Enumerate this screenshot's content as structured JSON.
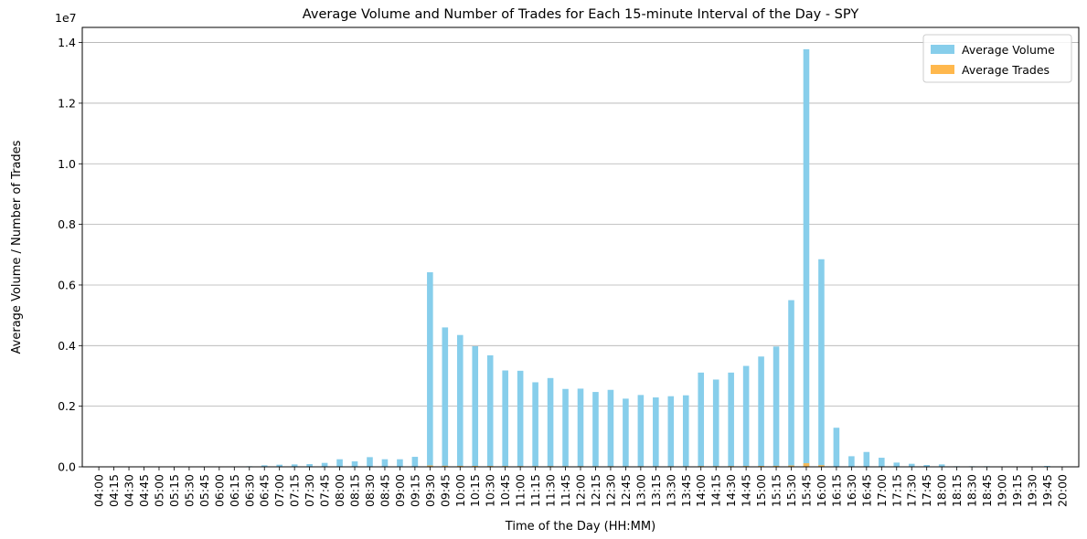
{
  "chart_data": {
    "type": "bar",
    "title": "Average Volume and Number of Trades for Each 15-minute Interval of the Day - SPY",
    "xlabel": "Time of the Day (HH:MM)",
    "ylabel": "Average Volume / Number of Trades",
    "y_offset_text": "1e7",
    "ylim": [
      0,
      14500000
    ],
    "yticks": [
      0,
      2000000,
      4000000,
      6000000,
      8000000,
      10000000,
      12000000,
      14000000
    ],
    "ytick_labels": [
      "0.0",
      "0.2",
      "0.4",
      "0.6",
      "0.8",
      "1.0",
      "1.2",
      "1.4"
    ],
    "grid": "y",
    "legend_position": "top-right",
    "categories": [
      "04:00",
      "04:15",
      "04:30",
      "04:45",
      "05:00",
      "05:15",
      "05:30",
      "05:45",
      "06:00",
      "06:15",
      "06:30",
      "06:45",
      "07:00",
      "07:15",
      "07:30",
      "07:45",
      "08:00",
      "08:15",
      "08:30",
      "08:45",
      "09:00",
      "09:15",
      "09:30",
      "09:45",
      "10:00",
      "10:15",
      "10:30",
      "10:45",
      "11:00",
      "11:15",
      "11:30",
      "11:45",
      "12:00",
      "12:15",
      "12:30",
      "12:45",
      "13:00",
      "13:15",
      "13:30",
      "13:45",
      "14:00",
      "14:15",
      "14:30",
      "14:45",
      "15:00",
      "15:15",
      "15:30",
      "15:45",
      "16:00",
      "16:15",
      "16:30",
      "16:45",
      "17:00",
      "17:15",
      "17:30",
      "17:45",
      "18:00",
      "18:15",
      "18:30",
      "18:45",
      "19:00",
      "19:15",
      "19:30",
      "19:45",
      "20:00"
    ],
    "series": [
      {
        "name": "Average Volume",
        "color": "#87CEEB",
        "values": [
          5000,
          5000,
          5000,
          5000,
          10000,
          10000,
          10000,
          10000,
          10000,
          15000,
          20000,
          50000,
          70000,
          80000,
          90000,
          130000,
          250000,
          180000,
          320000,
          250000,
          250000,
          330000,
          6420000,
          4600000,
          4350000,
          3980000,
          3680000,
          3180000,
          3170000,
          2790000,
          2930000,
          2570000,
          2580000,
          2470000,
          2540000,
          2250000,
          2370000,
          2290000,
          2330000,
          2360000,
          3110000,
          2880000,
          3110000,
          3330000,
          3640000,
          3970000,
          5500000,
          13780000,
          6850000,
          1290000,
          350000,
          490000,
          300000,
          140000,
          100000,
          60000,
          80000,
          20000,
          20000,
          20000,
          10000,
          10000,
          10000,
          30000,
          10000
        ]
      },
      {
        "name": "Average Trades",
        "color": "#FFB84D",
        "values": [
          10,
          10,
          10,
          10,
          20,
          20,
          20,
          20,
          20,
          30,
          40,
          100,
          150,
          180,
          200,
          300,
          500,
          400,
          600,
          500,
          500,
          600,
          45000,
          35000,
          32000,
          30000,
          28000,
          25000,
          24000,
          22000,
          23000,
          21000,
          21000,
          20000,
          20500,
          18500,
          19500,
          19000,
          19200,
          19500,
          25000,
          23000,
          25000,
          27000,
          30000,
          33000,
          45000,
          120000,
          55000,
          10000,
          3000,
          4000,
          2500,
          1200,
          900,
          500,
          700,
          200,
          200,
          200,
          100,
          100,
          100,
          300,
          100
        ]
      }
    ]
  }
}
